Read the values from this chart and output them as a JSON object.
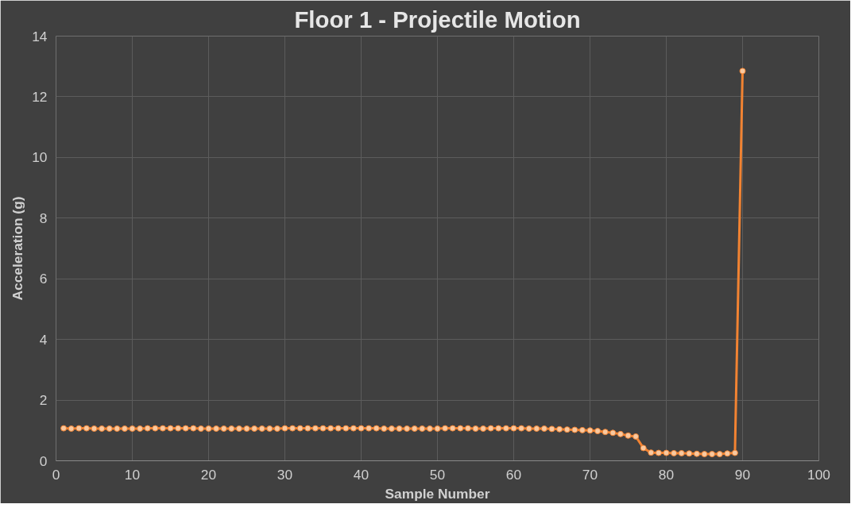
{
  "chart_data": {
    "type": "line",
    "title": "Floor 1 - Projectile Motion",
    "xlabel": "Sample Number",
    "ylabel": "Acceleration (g)",
    "x": [
      1,
      2,
      3,
      4,
      5,
      6,
      7,
      8,
      9,
      10,
      11,
      12,
      13,
      14,
      15,
      16,
      17,
      18,
      19,
      20,
      21,
      22,
      23,
      24,
      25,
      26,
      27,
      28,
      29,
      30,
      31,
      32,
      33,
      34,
      35,
      36,
      37,
      38,
      39,
      40,
      41,
      42,
      43,
      44,
      45,
      46,
      47,
      48,
      49,
      50,
      51,
      52,
      53,
      54,
      55,
      56,
      57,
      58,
      59,
      60,
      61,
      62,
      63,
      64,
      65,
      66,
      67,
      68,
      69,
      70,
      71,
      72,
      73,
      74,
      75,
      76,
      77,
      78,
      79,
      80,
      81,
      82,
      83,
      84,
      85,
      86,
      87,
      88,
      89,
      90
    ],
    "series": [
      {
        "color": "#f28332",
        "values": [
          1.07,
          1.06,
          1.07,
          1.07,
          1.06,
          1.06,
          1.06,
          1.06,
          1.06,
          1.06,
          1.06,
          1.07,
          1.07,
          1.07,
          1.07,
          1.07,
          1.07,
          1.07,
          1.06,
          1.06,
          1.06,
          1.06,
          1.06,
          1.06,
          1.06,
          1.06,
          1.06,
          1.06,
          1.06,
          1.07,
          1.07,
          1.07,
          1.07,
          1.07,
          1.07,
          1.07,
          1.07,
          1.07,
          1.07,
          1.07,
          1.07,
          1.07,
          1.06,
          1.06,
          1.06,
          1.06,
          1.06,
          1.06,
          1.06,
          1.06,
          1.07,
          1.07,
          1.07,
          1.07,
          1.06,
          1.06,
          1.07,
          1.07,
          1.07,
          1.07,
          1.07,
          1.06,
          1.06,
          1.06,
          1.05,
          1.04,
          1.03,
          1.02,
          1.01,
          1.0,
          0.98,
          0.95,
          0.92,
          0.88,
          0.83,
          0.8,
          0.42,
          0.27,
          0.26,
          0.26,
          0.25,
          0.25,
          0.24,
          0.23,
          0.22,
          0.22,
          0.22,
          0.24,
          0.26,
          12.85
        ]
      }
    ],
    "xlim": [
      0,
      100
    ],
    "xticks": [
      0,
      10,
      20,
      30,
      40,
      50,
      60,
      70,
      80,
      90,
      100
    ],
    "ylim": [
      0,
      14
    ],
    "yticks": [
      0,
      2,
      4,
      6,
      8,
      10,
      12,
      14
    ],
    "grid": true,
    "marker": "circle",
    "line_style": "solid"
  }
}
